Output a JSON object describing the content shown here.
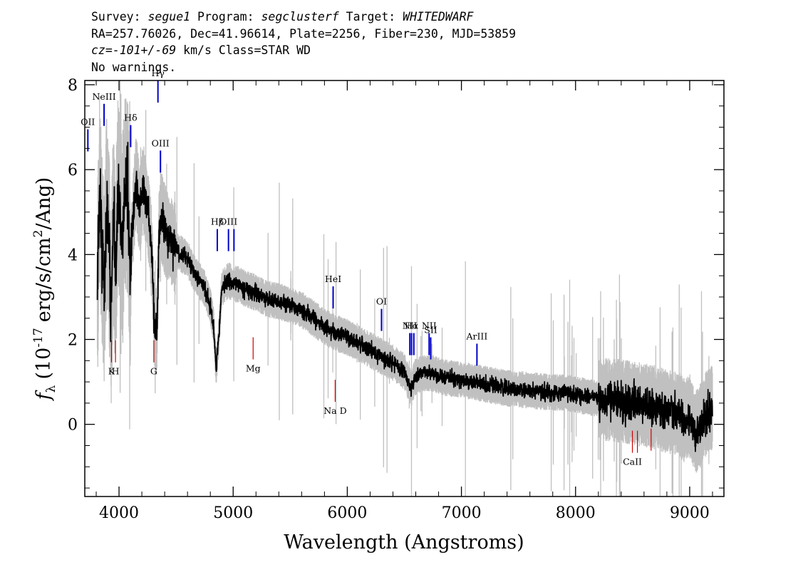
{
  "header": {
    "survey_label": "Survey:",
    "survey": "segue1",
    "program_label": "Program:",
    "program": "segclusterf",
    "target_label": "Target:",
    "target": "WHITEDWARF",
    "line2": "RA=257.76026, Dec=41.96614, Plate=2256, Fiber=230, MJD=53859",
    "cz_label": "cz=",
    "cz_value": "-101+/-69",
    "cz_rest": "km/s Class=STAR WD",
    "warnings": "No warnings."
  },
  "colors": {
    "flux": "#000000",
    "error_band": "#c0c0c0",
    "emission": "#0000cc",
    "absorption": "#cc0000"
  },
  "chart_data": {
    "type": "line",
    "title": "",
    "xlabel": "Wavelength (Angstroms)",
    "ylabel_parts": {
      "f": "f",
      "sub": "λ",
      "open": "(10",
      "exp1": "-17",
      "mid": "erg/s/cm",
      "exp2": "2",
      "close": "/Ang)"
    },
    "xlim": [
      3700,
      9300
    ],
    "ylim": [
      -1.7,
      8.1
    ],
    "xticks": [
      4000,
      5000,
      6000,
      7000,
      8000,
      9000
    ],
    "yticks": [
      0,
      2,
      4,
      6,
      8
    ],
    "grid": false,
    "series": [
      {
        "role": "flux",
        "x": [
          3810,
          3830,
          3850,
          3870,
          3890,
          3910,
          3930,
          3950,
          3970,
          3990,
          4010,
          4030,
          4050,
          4080,
          4100,
          4110,
          4130,
          4150,
          4180,
          4210,
          4240,
          4270,
          4290,
          4310,
          4330,
          4340,
          4350,
          4370,
          4400,
          4430,
          4460,
          4500,
          4550,
          4600,
          4650,
          4700,
          4750,
          4800,
          4830,
          4850,
          4860,
          4875,
          4900,
          4930,
          4960,
          5000,
          5050,
          5100,
          5200,
          5300,
          5400,
          5500,
          5600,
          5700,
          5800,
          5900,
          6000,
          6100,
          6200,
          6300,
          6400,
          6500,
          6540,
          6563,
          6590,
          6650,
          6750,
          6850,
          7000,
          7200,
          7400,
          7600,
          7800,
          7900,
          8000,
          8200,
          8400,
          8500,
          8600,
          8700,
          8800,
          8900,
          8950,
          9000,
          9050,
          9100,
          9150,
          9200
        ],
        "y": [
          3.0,
          5.6,
          4.2,
          3.2,
          5.0,
          4.5,
          2.6,
          4.8,
          3.5,
          5.5,
          5.0,
          4.2,
          5.5,
          5.3,
          3.0,
          4.3,
          5.1,
          5.8,
          5.0,
          5.6,
          5.2,
          4.6,
          3.8,
          2.4,
          2.1,
          3.1,
          4.4,
          4.9,
          4.6,
          4.4,
          4.3,
          4.1,
          4.0,
          3.9,
          3.6,
          3.4,
          3.2,
          2.8,
          2.3,
          1.3,
          1.6,
          2.1,
          3.2,
          3.3,
          3.4,
          3.3,
          3.3,
          3.2,
          3.1,
          2.95,
          2.9,
          2.8,
          2.7,
          2.5,
          2.3,
          2.15,
          2.05,
          1.9,
          1.75,
          1.6,
          1.45,
          1.25,
          0.95,
          0.85,
          1.1,
          1.2,
          1.2,
          1.1,
          1.05,
          0.95,
          0.85,
          0.8,
          0.75,
          0.75,
          0.7,
          0.6,
          0.55,
          0.5,
          0.45,
          0.4,
          0.3,
          0.25,
          0.1,
          0.2,
          -0.2,
          0.0,
          0.3,
          0.4
        ]
      }
    ],
    "lines": [
      {
        "name": "OII",
        "x": 3727,
        "y": 6.95,
        "kind": "emission"
      },
      {
        "name": "NeIII",
        "x": 3869,
        "y": 7.55,
        "kind": "emission"
      },
      {
        "name": "Hδ",
        "x": 4102,
        "y": 7.05,
        "kind": "emission"
      },
      {
        "name": "Hγ",
        "x": 4341,
        "y": 8.1,
        "kind": "emission"
      },
      {
        "name": "OIII",
        "x": 4363,
        "y": 6.45,
        "kind": "emission"
      },
      {
        "name": "Hβ",
        "x": 4861,
        "y": 4.6,
        "kind": "emission"
      },
      {
        "name": "OIII",
        "x": 4959,
        "y": 4.6,
        "kind": "emission"
      },
      {
        "name": "",
        "x": 5007,
        "y": 4.6,
        "kind": "emission"
      },
      {
        "name": "HeI",
        "x": 5876,
        "y": 3.25,
        "kind": "emission"
      },
      {
        "name": "OI",
        "x": 6300,
        "y": 2.72,
        "kind": "emission"
      },
      {
        "name": "NII",
        "x": 6548,
        "y": 2.15,
        "kind": "emission"
      },
      {
        "name": "Hα",
        "x": 6563,
        "y": 2.15,
        "kind": "emission"
      },
      {
        "name": "",
        "x": 6583,
        "y": 2.15,
        "kind": "emission"
      },
      {
        "name": "NII",
        "x": 6717,
        "y": 2.15,
        "kind": "emission"
      },
      {
        "name": "SII",
        "x": 6731,
        "y": 2.05,
        "kind": "emission"
      },
      {
        "name": "ArIII",
        "x": 7136,
        "y": 1.9,
        "kind": "emission"
      },
      {
        "name": "K",
        "x": 3934,
        "y": 1.98,
        "kind": "absorption"
      },
      {
        "name": "H",
        "x": 3969,
        "y": 1.98,
        "kind": "absorption"
      },
      {
        "name": "G",
        "x": 4305,
        "y": 1.98,
        "kind": "absorption"
      },
      {
        "name": "Mg",
        "x": 5175,
        "y": 2.05,
        "kind": "absorption"
      },
      {
        "name": "Na D",
        "x": 5894,
        "y": 1.05,
        "kind": "absorption"
      },
      {
        "name": "CaII",
        "x": 8498,
        "y": -0.15,
        "kind": "absorption"
      },
      {
        "name": "",
        "x": 8542,
        "y": -0.15,
        "kind": "absorption"
      },
      {
        "name": "",
        "x": 8662,
        "y": -0.1,
        "kind": "absorption"
      }
    ]
  }
}
